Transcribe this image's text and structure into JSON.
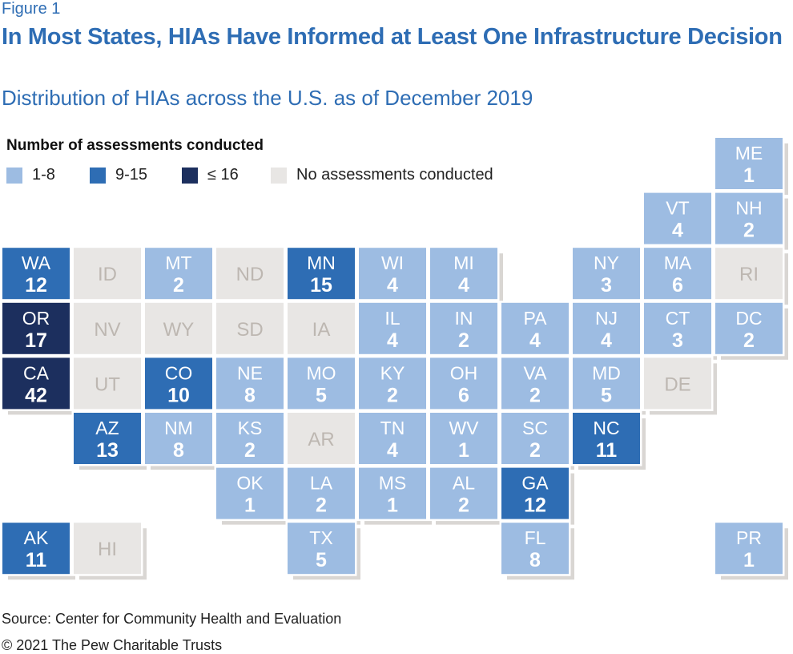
{
  "figure_label": "Figure 1",
  "chart_data": {
    "type": "tile-map",
    "title": "In Most States, HIAs Have Informed at Least One Infrastructure Decision",
    "subtitle": "Distribution of HIAs across the U.S. as of December 2019",
    "legend": {
      "title": "Number of assessments conducted",
      "placement": "top-left",
      "items": [
        {
          "label": "1-8",
          "color": "#9dbce2"
        },
        {
          "label": "9-15",
          "color": "#2e6db4"
        },
        {
          "label": "≤ 16",
          "color": "#1c2f5e"
        },
        {
          "label": "No assessments conducted",
          "color": "#e8e6e4"
        }
      ]
    },
    "tiles": [
      {
        "state": "ME",
        "value": 1
      },
      {
        "state": "VT",
        "value": 4
      },
      {
        "state": "NH",
        "value": 2
      },
      {
        "state": "WA",
        "value": 12
      },
      {
        "state": "ID",
        "value": null
      },
      {
        "state": "MT",
        "value": 2
      },
      {
        "state": "ND",
        "value": null
      },
      {
        "state": "MN",
        "value": 15
      },
      {
        "state": "WI",
        "value": 4
      },
      {
        "state": "MI",
        "value": 4
      },
      {
        "state": "NY",
        "value": 3
      },
      {
        "state": "MA",
        "value": 6
      },
      {
        "state": "RI",
        "value": null
      },
      {
        "state": "OR",
        "value": 17
      },
      {
        "state": "NV",
        "value": null
      },
      {
        "state": "WY",
        "value": null
      },
      {
        "state": "SD",
        "value": null
      },
      {
        "state": "IA",
        "value": null
      },
      {
        "state": "IL",
        "value": 4
      },
      {
        "state": "IN",
        "value": 2
      },
      {
        "state": "PA",
        "value": 4
      },
      {
        "state": "NJ",
        "value": 4
      },
      {
        "state": "CT",
        "value": 3
      },
      {
        "state": "DC",
        "value": 2
      },
      {
        "state": "CA",
        "value": 42
      },
      {
        "state": "UT",
        "value": null
      },
      {
        "state": "CO",
        "value": 10
      },
      {
        "state": "NE",
        "value": 8
      },
      {
        "state": "MO",
        "value": 5
      },
      {
        "state": "KY",
        "value": 2
      },
      {
        "state": "OH",
        "value": 6
      },
      {
        "state": "VA",
        "value": 2
      },
      {
        "state": "MD",
        "value": 5
      },
      {
        "state": "DE",
        "value": null
      },
      {
        "state": "AZ",
        "value": 13
      },
      {
        "state": "NM",
        "value": 8
      },
      {
        "state": "KS",
        "value": 2
      },
      {
        "state": "AR",
        "value": null
      },
      {
        "state": "TN",
        "value": 4
      },
      {
        "state": "WV",
        "value": 1
      },
      {
        "state": "SC",
        "value": 2
      },
      {
        "state": "NC",
        "value": 11
      },
      {
        "state": "OK",
        "value": 1
      },
      {
        "state": "LA",
        "value": 2
      },
      {
        "state": "MS",
        "value": 1
      },
      {
        "state": "AL",
        "value": 2
      },
      {
        "state": "GA",
        "value": 12
      },
      {
        "state": "AK",
        "value": 11
      },
      {
        "state": "HI",
        "value": null
      },
      {
        "state": "TX",
        "value": 5
      },
      {
        "state": "FL",
        "value": 8
      },
      {
        "state": "PR",
        "value": 1
      }
    ]
  },
  "footer": {
    "source": "Source: Center for Community Health and Evaluation",
    "copyright": "© 2021 The Pew Charitable Trusts"
  }
}
